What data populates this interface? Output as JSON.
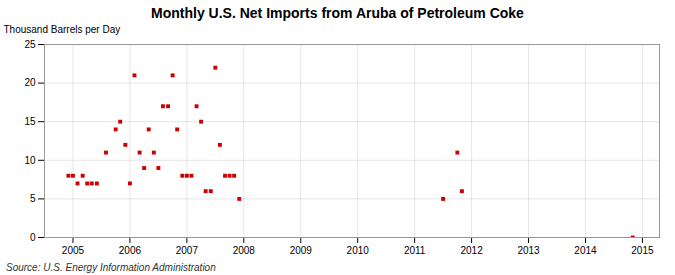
{
  "chart_data": {
    "type": "scatter",
    "title": "Monthly U.S. Net Imports from Aruba of Petroleum Coke",
    "ylabel": "Thousand Barrels per Day",
    "source": "Source: U.S. Energy Information Administration",
    "x": [
      2004.92,
      2005.0,
      2005.08,
      2005.17,
      2005.25,
      2005.33,
      2005.42,
      2005.58,
      2005.75,
      2005.83,
      2005.92,
      2006.0,
      2006.08,
      2006.17,
      2006.25,
      2006.33,
      2006.42,
      2006.5,
      2006.58,
      2006.67,
      2006.75,
      2006.83,
      2006.92,
      2007.0,
      2007.08,
      2007.17,
      2007.25,
      2007.33,
      2007.42,
      2007.5,
      2007.58,
      2007.67,
      2007.75,
      2007.83,
      2007.92,
      2011.5,
      2011.75,
      2011.83,
      2014.83
    ],
    "values": [
      8,
      8,
      7,
      8,
      7,
      7,
      7,
      11,
      14,
      15,
      12,
      7,
      21,
      11,
      9,
      14,
      11,
      9,
      17,
      17,
      21,
      14,
      8,
      8,
      8,
      17,
      15,
      6,
      6,
      22,
      12,
      8,
      8,
      8,
      5,
      5,
      11,
      6,
      0
    ],
    "color": "#cc0000",
    "marker": "square",
    "xlim": [
      2004.5,
      2015.3
    ],
    "xticks": [
      2005,
      2006,
      2007,
      2008,
      2009,
      2010,
      2011,
      2012,
      2013,
      2014,
      2015
    ],
    "ylim": [
      0,
      25
    ],
    "yticks": [
      0,
      5,
      10,
      15,
      20,
      25
    ],
    "grid": true
  }
}
